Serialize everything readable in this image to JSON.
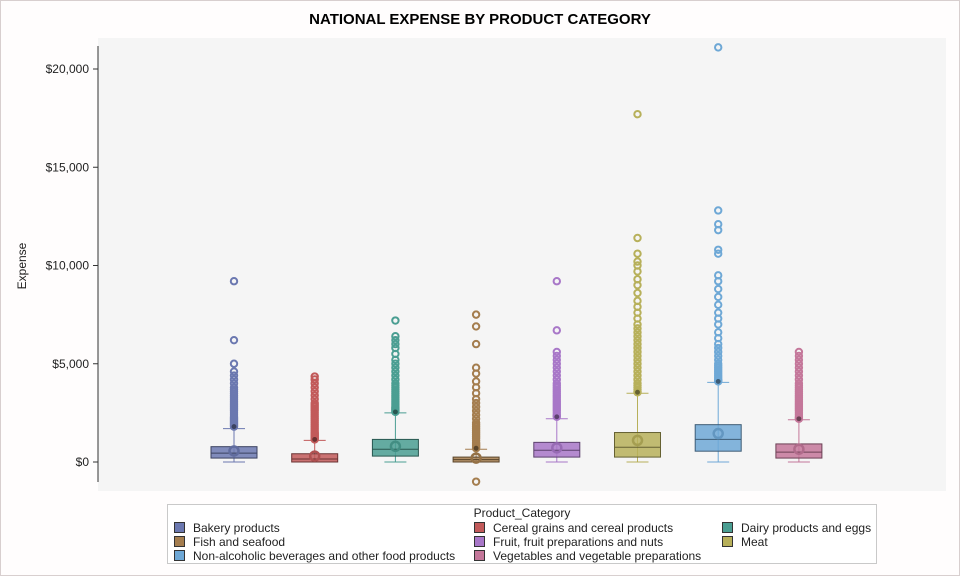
{
  "chart_data": {
    "type": "box",
    "title": "NATIONAL EXPENSE BY PRODUCT CATEGORY",
    "xlabel": "",
    "ylabel": "Expense",
    "ylim": [
      -1200,
      21300
    ],
    "yticks": [
      0,
      5000,
      10000,
      15000,
      20000
    ],
    "ytick_labels": [
      "$0",
      "$5,000",
      "$10,000",
      "$15,000",
      "$20,000"
    ],
    "grid": false,
    "legend_title": "Product_Category",
    "legend_position": "bottom",
    "series": [
      {
        "name": "Bakery products",
        "color": "#6b78b0",
        "min": 0,
        "q1": 200,
        "median": 450,
        "q3": 780,
        "max": 1700,
        "mean": 560,
        "outliers": [
          1800,
          1850,
          1900,
          1950,
          2000,
          2050,
          2100,
          2150,
          2200,
          2250,
          2300,
          2400,
          2500,
          2600,
          2700,
          2800,
          2900,
          3000,
          3100,
          3200,
          3300,
          3400,
          3500,
          3600,
          3700,
          3800,
          4000,
          4200,
          4400,
          4600,
          5000,
          6200,
          9200
        ]
      },
      {
        "name": "Cereal grains and cereal products",
        "color": "#c25a5a",
        "min": 0,
        "q1": 0,
        "median": 150,
        "q3": 420,
        "max": 1100,
        "mean": 300,
        "outliers": [
          1150,
          1200,
          1250,
          1300,
          1350,
          1400,
          1450,
          1500,
          1600,
          1700,
          1800,
          1900,
          2000,
          2100,
          2200,
          2300,
          2400,
          2500,
          2600,
          2700,
          2800,
          2900,
          3000,
          3200,
          3400,
          3600,
          3800,
          4000,
          4200,
          4350
        ]
      },
      {
        "name": "Dairy products and eggs",
        "color": "#4a9e92",
        "min": 0,
        "q1": 300,
        "median": 650,
        "q3": 1150,
        "max": 2500,
        "mean": 800,
        "outliers": [
          2550,
          2600,
          2650,
          2700,
          2750,
          2800,
          2900,
          3000,
          3100,
          3200,
          3300,
          3400,
          3500,
          3600,
          3700,
          3800,
          3900,
          4000,
          4200,
          4400,
          4600,
          4800,
          5000,
          5200,
          5500,
          5800,
          6000,
          6200,
          6400,
          7200
        ]
      },
      {
        "name": "Fish and seafood",
        "color": "#a47d4e",
        "min": 0,
        "q1": 0,
        "median": 120,
        "q3": 250,
        "max": 650,
        "mean": 200,
        "outliers": [
          -1000,
          700,
          750,
          800,
          850,
          900,
          950,
          1000,
          1100,
          1200,
          1300,
          1400,
          1500,
          1600,
          1700,
          1800,
          1900,
          2000,
          2200,
          2400,
          2600,
          2800,
          3000,
          3200,
          3500,
          3800,
          4100,
          4500,
          4800,
          6000,
          6900,
          7500
        ]
      },
      {
        "name": "Fruit, fruit preparations and nuts",
        "color": "#a877c8",
        "min": 0,
        "q1": 250,
        "median": 600,
        "q3": 1000,
        "max": 2200,
        "mean": 720,
        "outliers": [
          2300,
          2350,
          2400,
          2500,
          2600,
          2700,
          2800,
          2900,
          3000,
          3100,
          3200,
          3300,
          3400,
          3500,
          3600,
          3700,
          3800,
          3900,
          4000,
          4200,
          4400,
          4600,
          4800,
          5000,
          5200,
          5400,
          5600,
          6700,
          9200
        ]
      },
      {
        "name": "Meat",
        "color": "#b7b05a",
        "min": 0,
        "q1": 250,
        "median": 750,
        "q3": 1500,
        "max": 3500,
        "mean": 1100,
        "outliers": [
          3550,
          3600,
          3700,
          3800,
          3900,
          4000,
          4200,
          4400,
          4600,
          4800,
          5000,
          5200,
          5400,
          5600,
          5800,
          6000,
          6200,
          6400,
          6600,
          6800,
          7000,
          7300,
          7600,
          7900,
          8200,
          8600,
          9000,
          9300,
          9700,
          10000,
          10200,
          10600,
          11400,
          17700
        ]
      },
      {
        "name": "Non-alcoholic beverages and other food products",
        "color": "#6ea8d6",
        "min": 0,
        "q1": 550,
        "median": 1150,
        "q3": 1900,
        "max": 4050,
        "mean": 1450,
        "outliers": [
          4100,
          4150,
          4200,
          4300,
          4400,
          4500,
          4600,
          4700,
          4800,
          4900,
          5000,
          5200,
          5400,
          5600,
          5800,
          6000,
          6300,
          6600,
          7000,
          7300,
          7600,
          8000,
          8400,
          8800,
          9200,
          9500,
          10600,
          10800,
          11800,
          12100,
          12800,
          21100
        ]
      },
      {
        "name": "Vegetables and vegetable preparations",
        "color": "#c4779a",
        "min": 0,
        "q1": 200,
        "median": 500,
        "q3": 920,
        "max": 2150,
        "mean": 650,
        "outliers": [
          2200,
          2250,
          2300,
          2400,
          2500,
          2600,
          2700,
          2800,
          2900,
          3000,
          3100,
          3200,
          3300,
          3400,
          3500,
          3600,
          3700,
          3800,
          3900,
          4000,
          4200,
          4400,
          4600,
          4800,
          5000,
          5200,
          5400,
          5600
        ]
      }
    ]
  }
}
